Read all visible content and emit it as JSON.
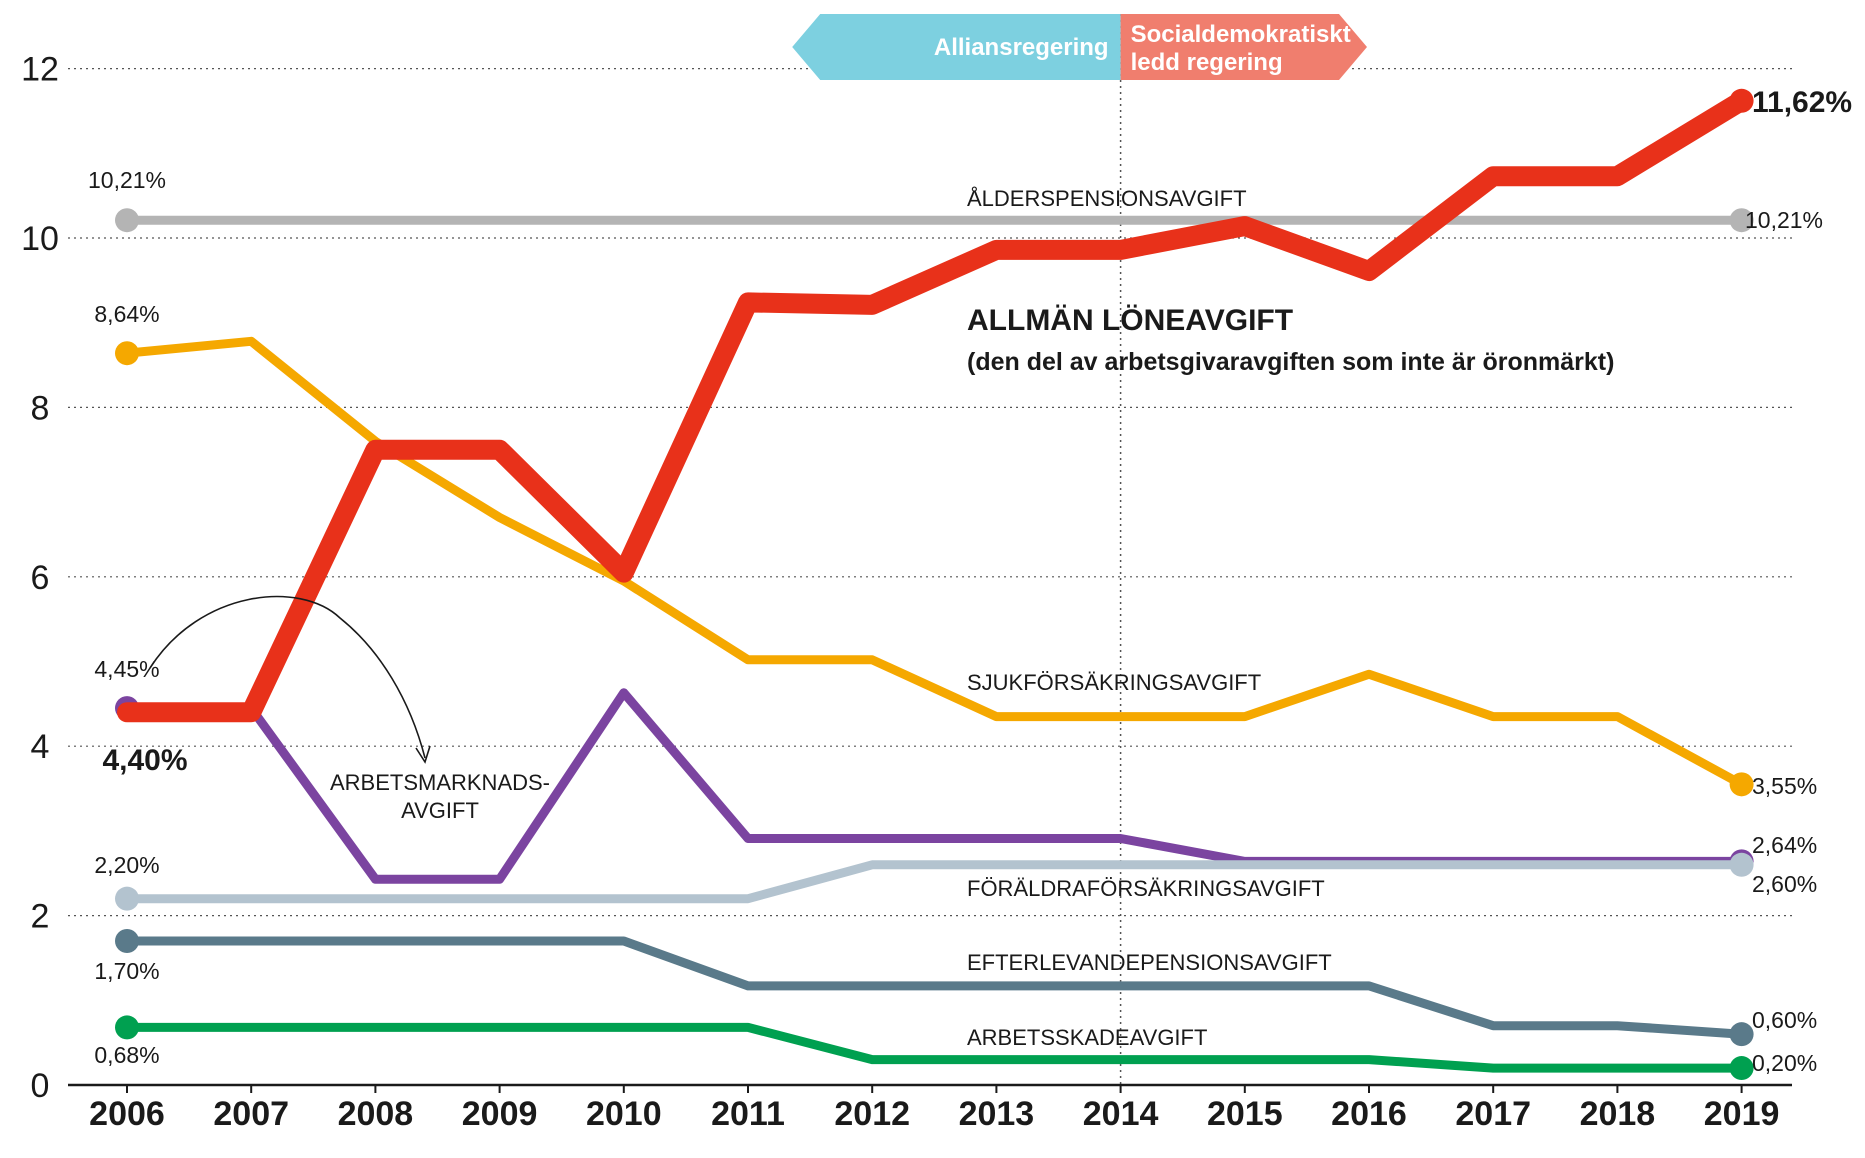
{
  "chart_data": {
    "type": "line",
    "x": [
      "2006",
      "2007",
      "2008",
      "2009",
      "2010",
      "2011",
      "2012",
      "2013",
      "2014",
      "2015",
      "2016",
      "2017",
      "2018",
      "2019"
    ],
    "ylim": [
      0,
      12
    ],
    "yticks": [
      "0",
      "2",
      "4",
      "6",
      "8",
      "10",
      "12"
    ],
    "grid": "dotted horizontal",
    "periods": [
      {
        "label": "Alliansregering",
        "color": "#7dd0e0",
        "from": "2012",
        "to": "2014"
      },
      {
        "label_lines": [
          "Socialdemokratiskt",
          "ledd regering"
        ],
        "color": "#f07e6e",
        "from": "2014",
        "to": "2016"
      }
    ],
    "annotation": {
      "main": "ALLMÄN LÖNEAVGIFT",
      "sub": "(den del av arbetsgivaravgiften som inte är öronmärkt)"
    },
    "series": [
      {
        "name": "ÅLDERSPENSIONSAVGIFT",
        "color": "#b4b4b4",
        "values": [
          10.21,
          10.21,
          10.21,
          10.21,
          10.21,
          10.21,
          10.21,
          10.21,
          10.21,
          10.21,
          10.21,
          10.21,
          10.21,
          10.21
        ],
        "start_label": "10,21%",
        "end_label": "10,21%"
      },
      {
        "name": "SJUKFÖRSÄKRINGSAVGIFT",
        "color": "#f5a800",
        "values": [
          8.64,
          8.78,
          7.6,
          6.7,
          5.95,
          5.02,
          5.02,
          4.35,
          4.35,
          4.35,
          4.85,
          4.35,
          4.35,
          3.55
        ],
        "start_label": "8,64%",
        "end_label": "3,55%"
      },
      {
        "name": "ARBETSMARKNADSAVGIFT",
        "name_lines": [
          "ARBETSMARKNADS-",
          "AVGIFT"
        ],
        "color": "#7b44a0",
        "values": [
          4.45,
          4.45,
          2.43,
          2.43,
          4.63,
          2.91,
          2.91,
          2.91,
          2.91,
          2.64,
          2.64,
          2.64,
          2.64,
          2.64
        ],
        "start_label": "4,45%",
        "end_label": "2,64%"
      },
      {
        "name": "FÖRÄLDRAFÖRSÄKRINGSAVGIFT",
        "color": "#b3c3cf",
        "values": [
          2.2,
          2.2,
          2.2,
          2.2,
          2.2,
          2.2,
          2.6,
          2.6,
          2.6,
          2.6,
          2.6,
          2.6,
          2.6,
          2.6
        ],
        "start_label": "2,20%",
        "end_label": "2,60%"
      },
      {
        "name": "EFTERLEVANDEPENSIONSAVGIFT",
        "color": "#5a7a8a",
        "values": [
          1.7,
          1.7,
          1.7,
          1.7,
          1.7,
          1.17,
          1.17,
          1.17,
          1.17,
          1.17,
          1.17,
          0.7,
          0.7,
          0.6
        ],
        "start_label": "1,70%",
        "end_label": "0,60%"
      },
      {
        "name": "ARBETSSKADEAVGIFT",
        "color": "#00a050",
        "values": [
          0.68,
          0.68,
          0.68,
          0.68,
          0.68,
          0.68,
          0.3,
          0.3,
          0.3,
          0.3,
          0.3,
          0.2,
          0.2,
          0.2
        ],
        "start_label": "0,68%",
        "end_label": "0,20%"
      },
      {
        "name": "ALLMÄN LÖNEAVGIFT",
        "color": "#e8311a",
        "values": [
          4.4,
          4.4,
          7.5,
          7.5,
          6.05,
          9.24,
          9.21,
          9.86,
          9.86,
          10.14,
          9.61,
          10.73,
          10.73,
          11.62
        ],
        "start_label": "4,40%",
        "end_label": "11,62%"
      }
    ]
  }
}
